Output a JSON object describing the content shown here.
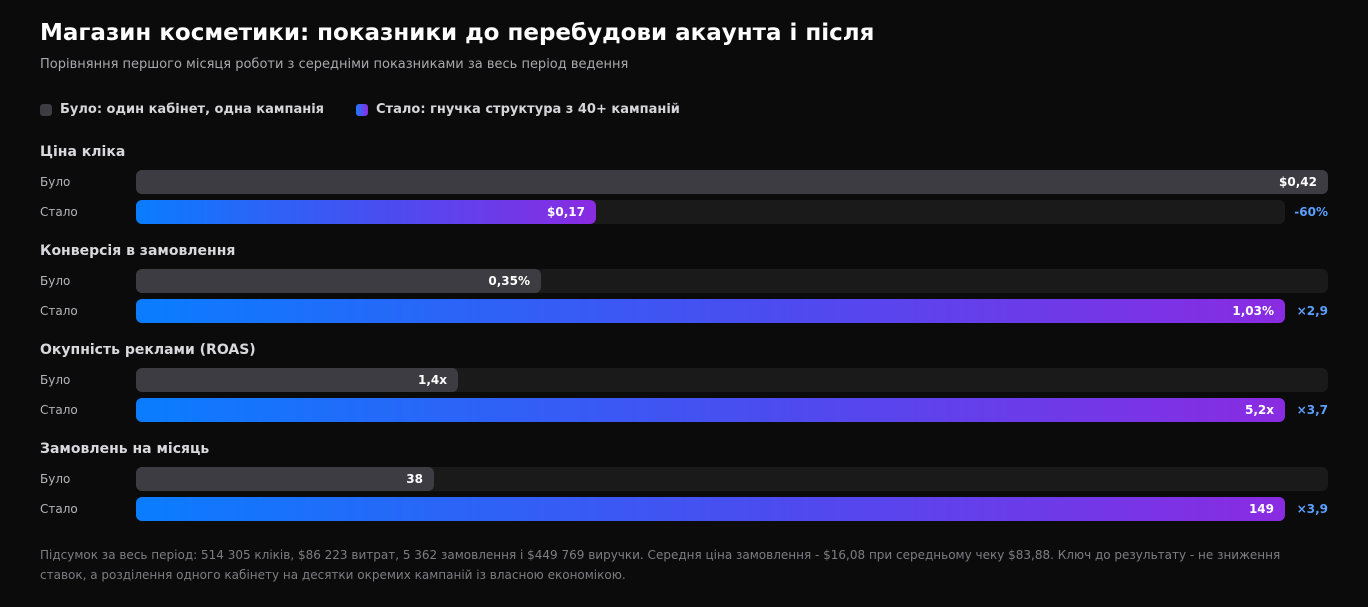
{
  "title": "Магазин косметики: показники до перебудови акаунта і після",
  "subtitle": "Порівняння першого місяця роботи з середніми показниками за весь період ведення",
  "colors": {
    "before": "#3c3c42",
    "after_start": "#0a7dff",
    "after_end": "#8a2be2",
    "change": "#5aa0ff",
    "background": "#0b0b0b"
  },
  "chart_data": {
    "type": "bar",
    "orientation": "horizontal",
    "legend": {
      "position": "top-left",
      "entries": [
        {
          "key": "before",
          "label": "Було: один кабінет, одна кампанія"
        },
        {
          "key": "after",
          "label": "Стало: гнучка структура з 40+ кампаній"
        }
      ]
    },
    "groups": [
      {
        "title": "Ціна кліка",
        "unit": "$",
        "before": {
          "label": "Було",
          "value": 0.42,
          "display": "$0,42",
          "fraction": 1.0
        },
        "after": {
          "label": "Стало",
          "value": 0.17,
          "display": "$0,17",
          "fraction": 0.4
        },
        "change": "-60%"
      },
      {
        "title": "Конверсія в замовлення",
        "unit": "%",
        "before": {
          "label": "Було",
          "value": 0.35,
          "display": "0,35%",
          "fraction": 0.34
        },
        "after": {
          "label": "Стало",
          "value": 1.03,
          "display": "1,03%",
          "fraction": 1.0
        },
        "change": "×2,9"
      },
      {
        "title": "Окупність реклами (ROAS)",
        "unit": "x",
        "before": {
          "label": "Було",
          "value": 1.4,
          "display": "1,4x",
          "fraction": 0.27
        },
        "after": {
          "label": "Стало",
          "value": 5.2,
          "display": "5,2x",
          "fraction": 1.0
        },
        "change": "×3,7"
      },
      {
        "title": "Замовлень на місяць",
        "unit": "",
        "before": {
          "label": "Було",
          "value": 38,
          "display": "38",
          "fraction": 0.25
        },
        "after": {
          "label": "Стало",
          "value": 149,
          "display": "149",
          "fraction": 1.0
        },
        "change": "×3,9"
      }
    ]
  },
  "footnote": "Підсумок за весь період: 514 305 кліків, $86 223 витрат, 5 362 замовлення і $449 769 виручки. Середня ціна замовлення - $16,08 при середньому чеку $83,88. Ключ до результату - не зниження ставок, а розділення одного кабінету на десятки окремих кампаній із власною економікою."
}
